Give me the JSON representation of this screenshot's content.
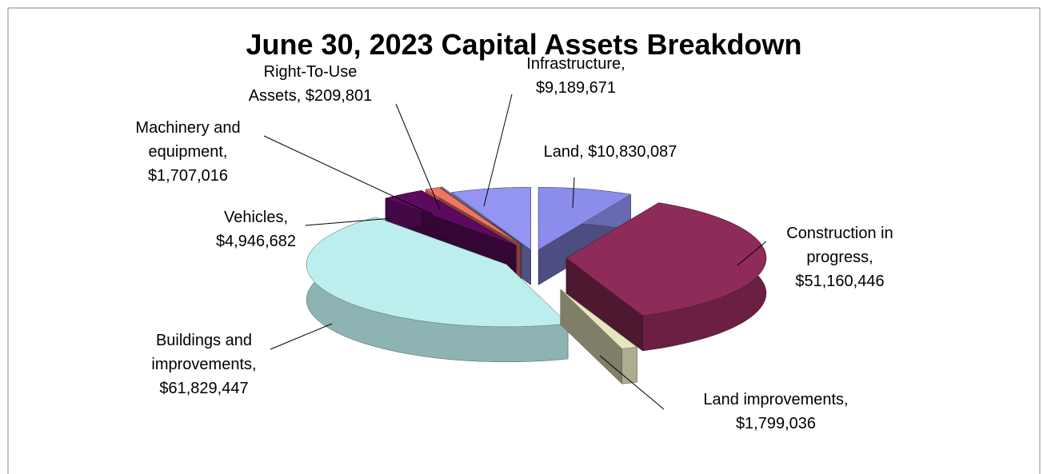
{
  "chart_data": {
    "type": "pie",
    "title": "June 30, 2023 Capital Assets Breakdown",
    "values": [
      10830087,
      51160446,
      1799036,
      61829447,
      4946682,
      1707016,
      209801,
      9189671
    ],
    "value_labels": [
      "Land, $10,830,087",
      "Construction in progress, $51,160,446",
      "Land improvements, $1,799,036",
      "Buildings and improvements, $61,829,447",
      "Vehicles, $4,946,682",
      "Machinery and equipment, $1,707,016",
      "Right-To-Use Assets, $209,801",
      "Infrastructure, $9,189,671"
    ],
    "colors": [
      "#8c8cec",
      "#8e2b58",
      "#e6e6be",
      "#bdeeee",
      "#5c0a5e",
      "#f27462",
      "#8484a8",
      "#9494f2"
    ]
  }
}
